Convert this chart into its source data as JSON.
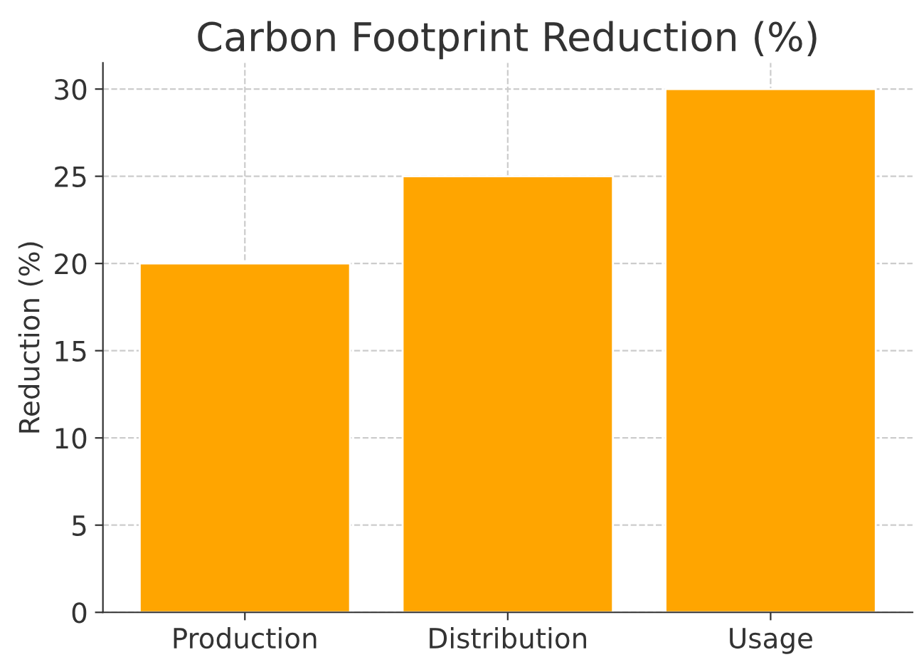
{
  "chart_data": {
    "type": "bar",
    "title": "Carbon Footprint Reduction (%)",
    "ylabel": "Reduction (%)",
    "categories": [
      "Production",
      "Distribution",
      "Usage"
    ],
    "values": [
      20,
      25,
      30
    ],
    "color": "#ffa500",
    "ylim": [
      0,
      31.5
    ],
    "yticks": [
      0,
      5,
      10,
      15,
      20,
      25,
      30
    ],
    "grid": true
  }
}
